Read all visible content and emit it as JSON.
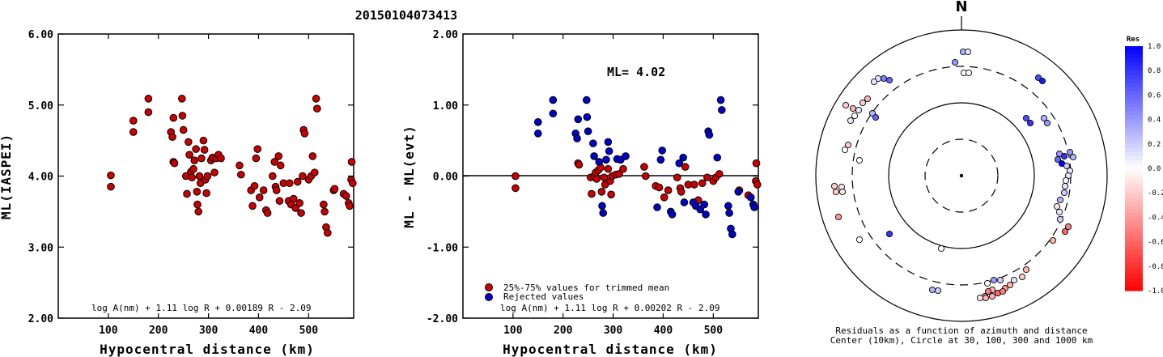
{
  "title": "20150104073413",
  "colors": {
    "red": "#cc0000",
    "blue": "#0000cc",
    "frame": "#000000"
  },
  "chart_data": [
    {
      "type": "scatter",
      "name": "ml-vs-distance",
      "xlabel": "Hypocentral distance (km)",
      "ylabel": "ML(IASPEI)",
      "xlim": [
        0,
        590
      ],
      "ylim": [
        2.0,
        6.0
      ],
      "xticks": [
        "100",
        "200",
        "300",
        "400",
        "500"
      ],
      "yticks": [
        "2.00",
        "3.00",
        "4.00",
        "5.00",
        "6.00"
      ],
      "formula": "log A(nm) + 1.11 log R + 0.00189 R - 2.09",
      "points": [
        [
          105,
          4.01
        ],
        [
          105,
          3.85
        ],
        [
          150,
          4.78
        ],
        [
          150,
          4.62
        ],
        [
          180,
          5.09
        ],
        [
          180,
          4.9
        ],
        [
          225,
          4.62
        ],
        [
          228,
          4.55
        ],
        [
          230,
          4.2
        ],
        [
          230,
          4.82
        ],
        [
          232,
          4.18
        ],
        [
          247,
          5.09
        ],
        [
          248,
          4.85
        ],
        [
          250,
          4.65
        ],
        [
          255,
          4.0
        ],
        [
          257,
          3.75
        ],
        [
          260,
          4.48
        ],
        [
          262,
          4.3
        ],
        [
          265,
          4.06
        ],
        [
          267,
          3.98
        ],
        [
          270,
          4.1
        ],
        [
          272,
          4.22
        ],
        [
          275,
          4.38
        ],
        [
          277,
          3.78
        ],
        [
          278,
          3.6
        ],
        [
          280,
          3.5
        ],
        [
          282,
          4.0
        ],
        [
          284,
          3.9
        ],
        [
          286,
          4.25
        ],
        [
          290,
          4.5
        ],
        [
          292,
          4.37
        ],
        [
          294,
          3.95
        ],
        [
          296,
          3.76
        ],
        [
          298,
          4.0
        ],
        [
          305,
          4.22
        ],
        [
          308,
          4.26
        ],
        [
          312,
          4.05
        ],
        [
          315,
          4.25
        ],
        [
          320,
          4.3
        ],
        [
          325,
          4.25
        ],
        [
          362,
          4.15
        ],
        [
          365,
          4.02
        ],
        [
          385,
          3.8
        ],
        [
          388,
          3.58
        ],
        [
          392,
          3.86
        ],
        [
          395,
          4.25
        ],
        [
          398,
          4.38
        ],
        [
          402,
          3.7
        ],
        [
          410,
          3.8
        ],
        [
          415,
          3.52
        ],
        [
          418,
          3.48
        ],
        [
          428,
          4.0
        ],
        [
          432,
          4.2
        ],
        [
          434,
          3.85
        ],
        [
          436,
          3.8
        ],
        [
          440,
          4.28
        ],
        [
          442,
          3.65
        ],
        [
          444,
          4.15
        ],
        [
          450,
          3.9
        ],
        [
          460,
          3.65
        ],
        [
          462,
          3.9
        ],
        [
          465,
          3.6
        ],
        [
          470,
          3.68
        ],
        [
          474,
          3.55
        ],
        [
          478,
          3.92
        ],
        [
          482,
          3.62
        ],
        [
          485,
          3.48
        ],
        [
          488,
          4.0
        ],
        [
          490,
          4.65
        ],
        [
          492,
          4.6
        ],
        [
          500,
          3.95
        ],
        [
          505,
          4.0
        ],
        [
          508,
          4.28
        ],
        [
          512,
          4.05
        ],
        [
          515,
          5.09
        ],
        [
          517,
          4.95
        ],
        [
          530,
          3.6
        ],
        [
          532,
          3.5
        ],
        [
          535,
          3.28
        ],
        [
          538,
          3.2
        ],
        [
          550,
          3.8
        ],
        [
          552,
          3.82
        ],
        [
          570,
          3.75
        ],
        [
          575,
          3.72
        ],
        [
          580,
          3.62
        ],
        [
          582,
          3.58
        ],
        [
          585,
          3.95
        ],
        [
          586,
          4.2
        ],
        [
          588,
          3.9
        ]
      ]
    },
    {
      "type": "scatter",
      "name": "residual-vs-distance",
      "xlabel": "Hypocentral distance (km)",
      "ylabel": "ML - ML(evt)",
      "xlim": [
        0,
        590
      ],
      "ylim": [
        -2.0,
        2.0
      ],
      "xticks": [
        "100",
        "200",
        "300",
        "400",
        "500"
      ],
      "yticks": [
        "-2.00",
        "-1.00",
        "0.00",
        "1.00",
        "2.00"
      ],
      "ml_label": "ML= 4.02",
      "formula": "log A(nm) + 1.11 log R + 0.00202 R - 2.09",
      "legend": [
        {
          "label": "25%-75% values for trimmed mean",
          "color": "red"
        },
        {
          "label": "Rejected values",
          "color": "blue"
        }
      ],
      "red_points": [
        [
          105,
          0.0
        ],
        [
          105,
          -0.17
        ],
        [
          230,
          0.18
        ],
        [
          232,
          0.16
        ],
        [
          255,
          -0.02
        ],
        [
          257,
          -0.25
        ],
        [
          262,
          0.0
        ],
        [
          265,
          0.05
        ],
        [
          267,
          -0.04
        ],
        [
          270,
          0.08
        ],
        [
          275,
          0.12
        ],
        [
          277,
          -0.22
        ],
        [
          282,
          -0.02
        ],
        [
          284,
          -0.12
        ],
        [
          290,
          0.1
        ],
        [
          294,
          -0.07
        ],
        [
          296,
          -0.26
        ],
        [
          298,
          0.0
        ],
        [
          305,
          0.02
        ],
        [
          312,
          0.03
        ],
        [
          320,
          0.1
        ],
        [
          362,
          0.13
        ],
        [
          365,
          0.0
        ],
        [
          385,
          -0.14
        ],
        [
          392,
          -0.16
        ],
        [
          402,
          -0.3
        ],
        [
          410,
          -0.2
        ],
        [
          428,
          -0.02
        ],
        [
          434,
          -0.17
        ],
        [
          436,
          -0.22
        ],
        [
          444,
          0.13
        ],
        [
          450,
          -0.12
        ],
        [
          462,
          -0.12
        ],
        [
          470,
          -0.34
        ],
        [
          478,
          -0.1
        ],
        [
          488,
          -0.02
        ],
        [
          500,
          -0.07
        ],
        [
          505,
          -0.02
        ],
        [
          512,
          0.03
        ],
        [
          552,
          -0.2
        ],
        [
          570,
          -0.27
        ],
        [
          585,
          -0.07
        ],
        [
          588,
          -0.12
        ],
        [
          586,
          0.18
        ]
      ],
      "blue_points": [
        [
          150,
          0.76
        ],
        [
          150,
          0.6
        ],
        [
          180,
          1.07
        ],
        [
          180,
          0.88
        ],
        [
          225,
          0.6
        ],
        [
          228,
          0.53
        ],
        [
          230,
          0.8
        ],
        [
          247,
          1.07
        ],
        [
          248,
          0.83
        ],
        [
          250,
          0.63
        ],
        [
          260,
          0.46
        ],
        [
          262,
          0.28
        ],
        [
          272,
          0.2
        ],
        [
          278,
          -0.42
        ],
        [
          280,
          -0.52
        ],
        [
          286,
          0.23
        ],
        [
          290,
          0.48
        ],
        [
          292,
          0.35
        ],
        [
          308,
          0.24
        ],
        [
          315,
          0.23
        ],
        [
          325,
          0.28
        ],
        [
          388,
          -0.44
        ],
        [
          395,
          0.23
        ],
        [
          398,
          0.36
        ],
        [
          415,
          -0.5
        ],
        [
          418,
          -0.54
        ],
        [
          432,
          0.18
        ],
        [
          440,
          0.26
        ],
        [
          442,
          -0.37
        ],
        [
          460,
          -0.37
        ],
        [
          465,
          -0.42
        ],
        [
          474,
          -0.47
        ],
        [
          482,
          -0.4
        ],
        [
          485,
          -0.54
        ],
        [
          490,
          0.63
        ],
        [
          492,
          0.58
        ],
        [
          508,
          0.26
        ],
        [
          515,
          1.07
        ],
        [
          517,
          0.93
        ],
        [
          530,
          -0.42
        ],
        [
          532,
          -0.52
        ],
        [
          535,
          -0.74
        ],
        [
          538,
          -0.82
        ],
        [
          550,
          -0.22
        ],
        [
          575,
          -0.3
        ],
        [
          580,
          -0.4
        ],
        [
          582,
          -0.44
        ]
      ]
    },
    {
      "type": "scatter",
      "name": "residuals-azimuth-distance",
      "north_label": "N",
      "caption_line1": "Residuals as a function of azimuth and distance",
      "caption_line2": "Center (10km), Circle at 30, 100, 300 and 1000 km",
      "colorbar_title": "Res",
      "colorbar_ticks": [
        "1.0",
        "0.8",
        "0.6",
        "0.4",
        "0.2",
        "0.0",
        "-0.2",
        "-0.4",
        "-0.6",
        "-0.8",
        "-1.0"
      ],
      "stations": [
        [
          1190,
          64,
          0.3
        ],
        [
          1196,
          64,
          0.1
        ],
        [
          1180,
          77,
          0.4
        ],
        [
          1191,
          90,
          0.0
        ],
        [
          1197,
          90,
          0.0
        ],
        [
          1283,
          96,
          0.7
        ],
        [
          1288,
          100,
          0.9
        ],
        [
          1085,
          97,
          0.1
        ],
        [
          1092,
          97,
          0.5
        ],
        [
          1099,
          99,
          0.6
        ],
        [
          1080,
          101,
          0.1
        ],
        [
          1072,
          122,
          -0.3
        ],
        [
          1066,
          127,
          -0.2
        ],
        [
          1061,
          136,
          0.1
        ],
        [
          1056,
          143,
          0.0
        ],
        [
          1051,
          149,
          0.1
        ],
        [
          1054,
          134,
          -0.3
        ],
        [
          1045,
          130,
          -0.2
        ],
        [
          1078,
          140,
          0.3
        ],
        [
          1082,
          145,
          0.6
        ],
        [
          1268,
          146,
          0.7
        ],
        [
          1273,
          152,
          0.8
        ],
        [
          1290,
          146,
          0.3
        ],
        [
          1294,
          152,
          0.4
        ],
        [
          1048,
          179,
          -0.2
        ],
        [
          1044,
          185,
          0.0
        ],
        [
          1062,
          198,
          0.0
        ],
        [
          1309,
          190,
          0.4
        ],
        [
          1315,
          193,
          0.8
        ],
        [
          1322,
          188,
          0.4
        ],
        [
          1326,
          194,
          0.3
        ],
        [
          1307,
          197,
          0.6
        ],
        [
          1312,
          202,
          1.0
        ],
        [
          1318,
          205,
          0.2
        ],
        [
          1322,
          211,
          0.1
        ],
        [
          1320,
          217,
          0.1
        ],
        [
          1317,
          223,
          0.0
        ],
        [
          1316,
          230,
          0.1
        ],
        [
          1315,
          238,
          0.2
        ],
        [
          1310,
          247,
          0.3
        ],
        [
          1306,
          255,
          -0.1
        ],
        [
          1309,
          262,
          0.1
        ],
        [
          1310,
          271,
          0.2
        ],
        [
          1320,
          280,
          -0.5
        ],
        [
          1316,
          286,
          -0.6
        ],
        [
          1301,
          297,
          -0.3
        ],
        [
          1031,
          230,
          -0.2
        ],
        [
          1040,
          231,
          -0.1
        ],
        [
          1033,
          237,
          -0.2
        ],
        [
          1041,
          237,
          -0.1
        ],
        [
          1036,
          268,
          -0.4
        ],
        [
          1062,
          296,
          0.0
        ],
        [
          1099,
          289,
          0.8
        ],
        [
          1163,
          307,
          0.0
        ],
        [
          1268,
          333,
          -0.3
        ],
        [
          1263,
          342,
          -0.2
        ],
        [
          1253,
          346,
          0.1
        ],
        [
          1236,
          346,
          0.2
        ],
        [
          1228,
          346,
          0.4
        ],
        [
          1220,
          350,
          0.0
        ],
        [
          1248,
          352,
          -0.3
        ],
        [
          1242,
          356,
          -0.4
        ],
        [
          1226,
          358,
          -0.3
        ],
        [
          1221,
          360,
          -0.5
        ],
        [
          1217,
          366,
          -0.4
        ],
        [
          1211,
          368,
          -0.1
        ],
        [
          1233,
          362,
          -0.6
        ],
        [
          1239,
          360,
          -0.5
        ],
        [
          1226,
          366,
          -0.3
        ],
        [
          1218,
          368,
          -0.3
        ],
        [
          1152,
          358,
          0.3
        ],
        [
          1159,
          359,
          0.2
        ]
      ]
    }
  ]
}
